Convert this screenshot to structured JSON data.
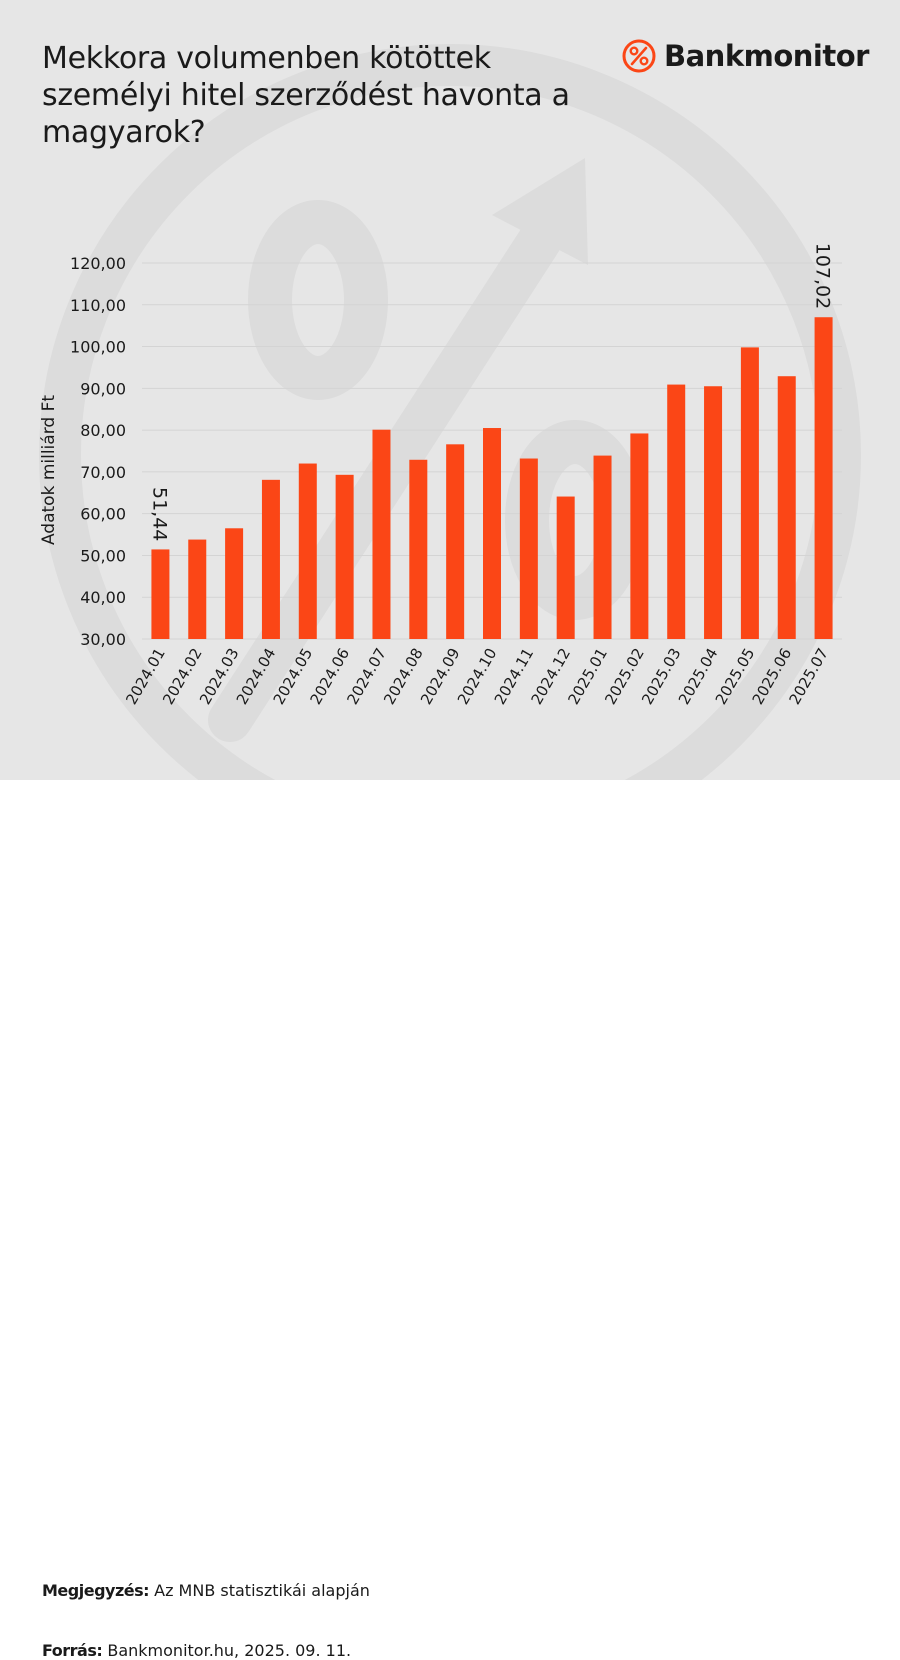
{
  "header": {
    "title": "Mekkora volumenben kötöttek személyi hitel szerződést havonta a magyarok?",
    "brand_name": "Bankmonitor",
    "brand_icon": "percent-circle-icon"
  },
  "footer": {
    "note_label": "Megjegyzés:",
    "note_text": " Az MNB statisztikái alapján",
    "source_label": "Forrás:",
    "source_text": " Bankmonitor.hu, 2025. 09. 11."
  },
  "colors": {
    "bar": "#fb4616",
    "brand_accent": "#fb4616",
    "background": "#e6e6e6",
    "watermark": "#dcdcdc",
    "text": "#1a1a1a"
  },
  "chart_data": {
    "type": "bar",
    "ylabel": "Adatok milliárd Ft",
    "xlabel": "",
    "ylim": [
      30,
      120
    ],
    "yticks": [
      30,
      40,
      50,
      60,
      70,
      80,
      90,
      100,
      110,
      120
    ],
    "ytick_labels": [
      "30,00",
      "40,00",
      "50,00",
      "60,00",
      "70,00",
      "80,00",
      "90,00",
      "100,00",
      "110,00",
      "120,00"
    ],
    "grid": true,
    "categories": [
      "2024.01",
      "2024.02",
      "2024.03",
      "2024.04",
      "2024.05",
      "2024.06",
      "2024.07",
      "2024.08",
      "2024.09",
      "2024.10",
      "2024.11",
      "2024.12",
      "2025.01",
      "2025.02",
      "2025.03",
      "2025.04",
      "2025.05",
      "2025.06",
      "2025.07"
    ],
    "values": [
      51.44,
      53.8,
      56.5,
      68.1,
      72.0,
      69.3,
      80.1,
      72.9,
      76.6,
      80.5,
      73.2,
      64.1,
      73.9,
      79.2,
      90.9,
      90.5,
      99.8,
      92.9,
      107.02
    ],
    "data_labels": [
      {
        "index": 0,
        "text": "51,44"
      },
      {
        "index": 18,
        "text": "107,02"
      }
    ]
  }
}
